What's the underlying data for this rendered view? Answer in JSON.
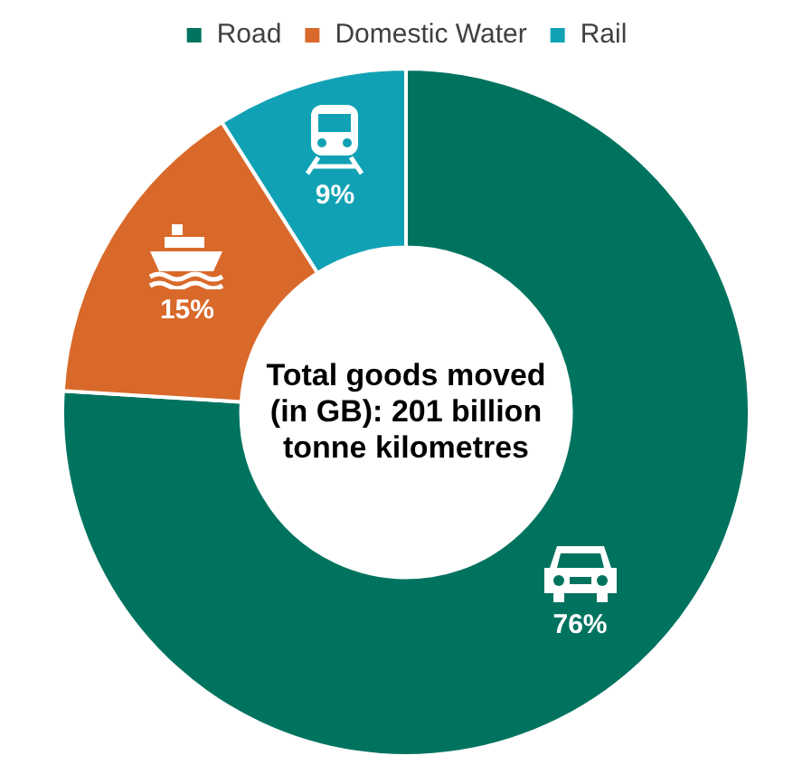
{
  "chart_data": {
    "type": "donut",
    "categories": [
      "Road",
      "Domestic Water",
      "Rail"
    ],
    "values": [
      76,
      15,
      9
    ],
    "colors": [
      "#00735f",
      "#d9692a",
      "#10a2b4"
    ],
    "value_labels": [
      "76%",
      "15%",
      "9%"
    ],
    "legend": "top",
    "annotations": [
      "Total goods moved (in GB): 201 billion tonne kilometres"
    ]
  }
}
